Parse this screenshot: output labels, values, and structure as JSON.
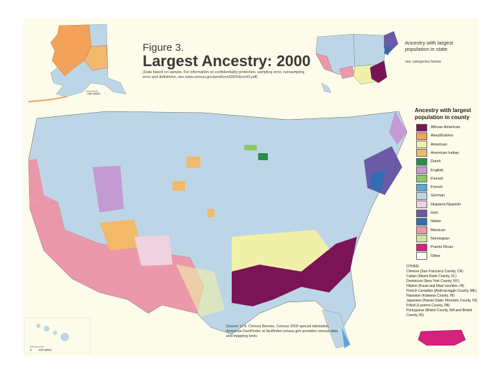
{
  "figure": {
    "number": "Figure 3.",
    "title": "Largest Ancestry: 2000",
    "note": "(Data based on sample. For information on confidentiality protection, sampling error, nonsampling error and definitions, see www.census.gov/prod/cen2000/doc/sf3.pdf)"
  },
  "state_inset": {
    "legend_title": "Ancestry with largest population in state",
    "legend_subtitle": "see categories below"
  },
  "county_legend": {
    "title": "Ancestry with largest population in county",
    "items": [
      {
        "label": "African American",
        "color": "#7b1456"
      },
      {
        "label": "Aleut/Eskimo",
        "color": "#f4a259"
      },
      {
        "label": "American",
        "color": "#f0f0a8"
      },
      {
        "label": "American Indian",
        "color": "#f2b96a"
      },
      {
        "label": "Dutch",
        "color": "#2e8b4e"
      },
      {
        "label": "English",
        "color": "#c39ad1"
      },
      {
        "label": "Finnish",
        "color": "#8ec66a"
      },
      {
        "label": "French",
        "color": "#5aa7d8"
      },
      {
        "label": "German",
        "color": "#bcd6e7"
      },
      {
        "label": "Hispanic/Spanish",
        "color": "#efd2dd"
      },
      {
        "label": "Irish",
        "color": "#6a5aa8"
      },
      {
        "label": "Italian",
        "color": "#2f6db4"
      },
      {
        "label": "Mexican",
        "color": "#eb98aa"
      },
      {
        "label": "Norwegian",
        "color": "#cfe3a2"
      },
      {
        "label": "Puerto Rican",
        "color": "#d6227e"
      },
      {
        "label": "Other",
        "color": "#ffffff"
      }
    ]
  },
  "other": {
    "heading": "OTHER:",
    "lines": [
      "Chinese (San Francisco County, CA)",
      "Cuban (Miami-Dade County, FL)",
      "Dominican (New York County, NY)",
      "Filipino (Kauai and Maui counties, HI)",
      "French Canadian (Androscoggin County, ME)",
      "Hawaiian (Kalawao County, HI)",
      "Japanese (Hawaii State; Honolulu County, HI)",
      "Polish (Luzerne County, PA)",
      "Portuguese (Bristol County, MA and Bristol County, RI)"
    ]
  },
  "source": "Source: U.S. Census Bureau, Census 2000 special tabulation. American FactFinder at factfinder.census.gov provides census data and mapping tools.",
  "scales": {
    "alaska": "100 Miles",
    "hawaii": "100 Miles",
    "hawaii_zero": "0",
    "alaska_zero": "0"
  }
}
